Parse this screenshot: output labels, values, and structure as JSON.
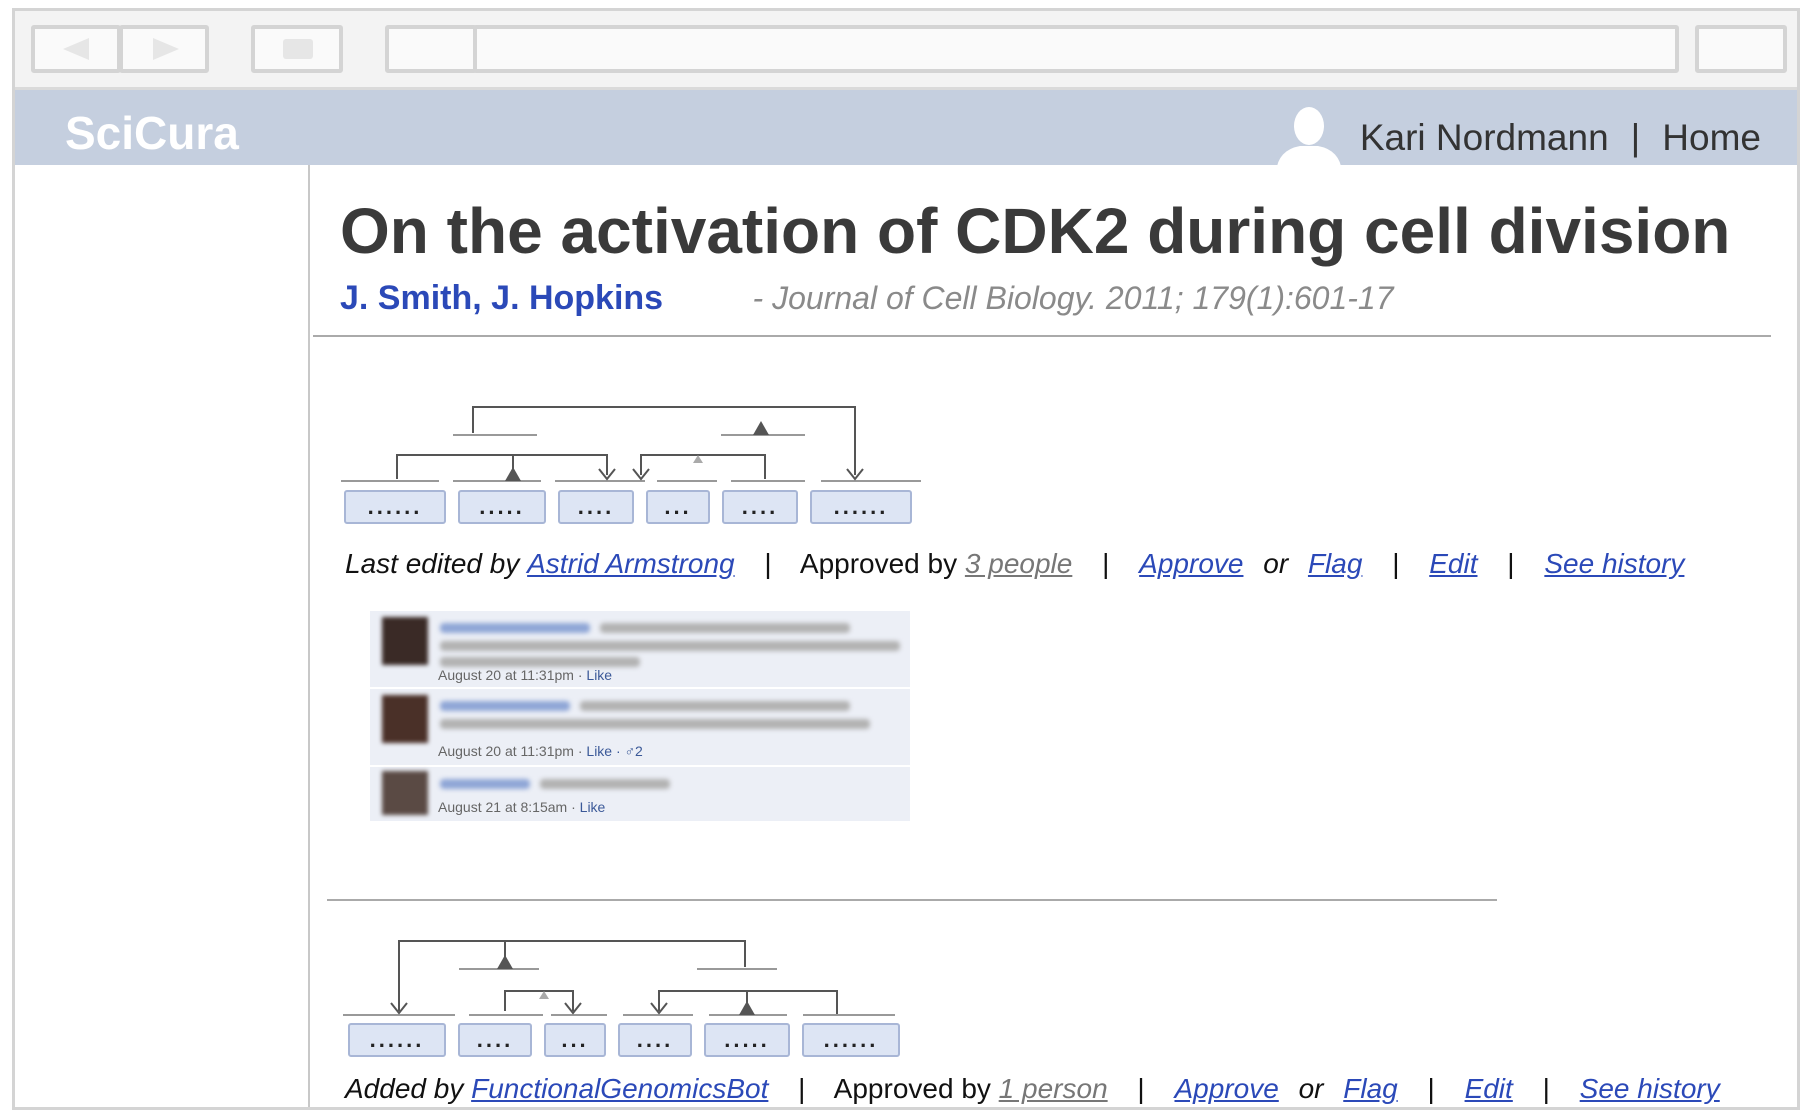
{
  "app": {
    "name": "SciCura"
  },
  "user": {
    "name": "Kari Nordmann",
    "separator": "|",
    "home_label": "Home"
  },
  "paper": {
    "title": "On the activation of CDK2 during cell division",
    "authors": [
      "J. Smith",
      "J. Hopkins"
    ],
    "author_separator": ",",
    "citation": "- Journal of Cell Biology. 2011; 179(1):601-17"
  },
  "entries": [
    {
      "chips": [
        "......",
        ".....",
        "....",
        "...",
        "....",
        "......"
      ],
      "meta": {
        "prefix": "Last edited by",
        "editor": "Astrid Armstrong",
        "approved_prefix": "Approved by",
        "approved_count": "3 people",
        "approve_label": "Approve",
        "or_label": "or",
        "flag_label": "Flag",
        "edit_label": "Edit",
        "history_label": "See history",
        "separator": "|"
      },
      "comments": [
        {
          "time": "August 20 at 11:31pm",
          "dot": "·",
          "like": "Like"
        },
        {
          "time": "August 20 at 11:31pm",
          "dot": "·",
          "like": "Like",
          "extra": "· ♂2"
        },
        {
          "time": "August 21 at 8:15am",
          "dot": "·",
          "like": "Like"
        }
      ]
    },
    {
      "chips": [
        "......",
        "....",
        "...",
        "....",
        ".....",
        "......"
      ],
      "meta": {
        "prefix": "Added by",
        "editor": "FunctionalGenomicsBot",
        "approved_prefix": "Approved by",
        "approved_count": "1 person",
        "approve_label": "Approve",
        "or_label": "or",
        "flag_label": "Flag",
        "edit_label": "Edit",
        "history_label": "See history",
        "separator": "|"
      }
    }
  ],
  "colors": {
    "appbar": "#c5cfdf",
    "link": "#2b49b8",
    "chip_bg": "#dde5f4",
    "title": "#3a3a3a"
  },
  "icons": {
    "back": "back-arrow-icon",
    "forward": "forward-arrow-icon",
    "home": "home-icon",
    "avatar": "user-silhouette-icon"
  }
}
